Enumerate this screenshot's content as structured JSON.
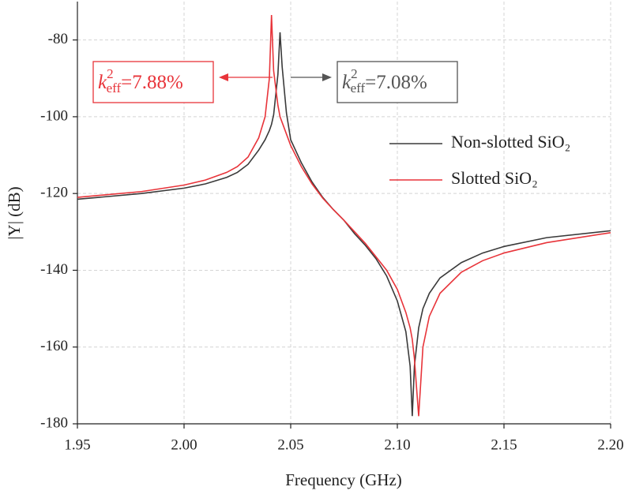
{
  "chart_data": {
    "type": "line",
    "x_label": "Frequency (GHz)",
    "y_label": "|Y| (dB)",
    "xlim": [
      1.95,
      2.2
    ],
    "ylim": [
      -180,
      -70
    ],
    "xticks": [
      1.95,
      {
        "value": 2,
        "label": "2.00"
      },
      2.05,
      {
        "value": 2.1,
        "label": "2.10"
      },
      2.15,
      {
        "value": 2.2,
        "label": "2.20"
      }
    ],
    "yticks": [
      -180,
      -160,
      -140,
      -120,
      -100,
      -80
    ],
    "grid": true,
    "x": [
      1.95,
      1.98,
      2.0,
      2.01,
      2.02,
      2.025,
      2.03,
      2.035,
      2.038,
      2.04,
      2.041,
      2.042,
      2.044,
      2.045,
      2.046,
      2.048,
      2.05,
      2.055,
      2.06,
      2.065,
      2.07,
      2.075,
      2.08,
      2.085,
      2.09,
      2.095,
      2.1,
      2.104,
      2.106,
      2.107,
      2.108,
      2.11,
      2.112,
      2.115,
      2.12,
      2.13,
      2.14,
      2.15,
      2.17,
      2.2
    ],
    "series": [
      {
        "name": "Non-slotted SiO₂",
        "color": "#3a3a3a",
        "values": [
          -121.5,
          -120,
          -118.6,
          -117.5,
          -115.8,
          -114.5,
          -112.4,
          -108.7,
          -106,
          -103.6,
          -102,
          -99.5,
          -89,
          -78,
          -87,
          -99,
          -106,
          -112,
          -117,
          -121,
          -124.2,
          -127,
          -130.5,
          -133.5,
          -137,
          -141.5,
          -148,
          -156,
          -165,
          -178,
          -165,
          -155,
          -150,
          -146,
          -142,
          -138,
          -135.5,
          -133.8,
          -131.5,
          -129.7
        ]
      },
      {
        "name": "Slotted SiO₂",
        "color": "#e8343a",
        "values": [
          -121,
          -119.5,
          -117.8,
          -116.5,
          -114.5,
          -113,
          -110.5,
          -105.5,
          -100,
          -90,
          -73.5,
          -88,
          -97,
          -100,
          -101.5,
          -104.5,
          -107.5,
          -113,
          -117.5,
          -121.2,
          -124.2,
          -127,
          -130,
          -133,
          -136.5,
          -140,
          -145,
          -151,
          -155,
          -158,
          -163,
          -178,
          -160,
          -152,
          -146,
          -140.5,
          -137.5,
          -135.5,
          -132.8,
          -130.2
        ]
      }
    ],
    "annotations": [
      {
        "symbol": "k",
        "sup": "2",
        "sub": "eff",
        "text": "=7.88%",
        "color": "#e8343a"
      },
      {
        "symbol": "k",
        "sup": "2",
        "sub": "eff",
        "text": "=7.08%",
        "color": "#555555"
      }
    ]
  }
}
